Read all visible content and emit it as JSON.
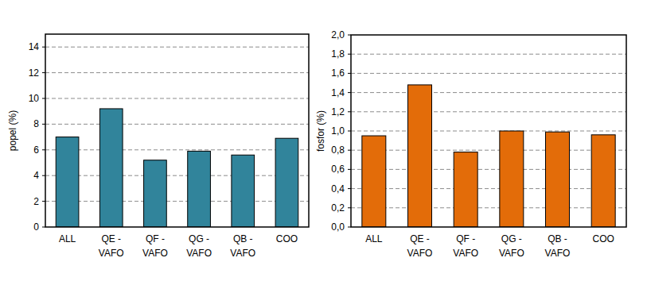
{
  "chart_data": [
    {
      "type": "bar",
      "y_label": "popel (%)",
      "categories": [
        "ALL",
        "QE - VAFO",
        "QF - VAFO",
        "QG - VAFO",
        "QB - VAFO",
        "COO"
      ],
      "values": [
        7.0,
        9.2,
        5.2,
        5.9,
        5.6,
        6.9
      ],
      "color": "#31849b",
      "ylim": [
        0,
        15
      ],
      "yticks": [
        0,
        2,
        4,
        6,
        8,
        10,
        12,
        14
      ],
      "grid": true
    },
    {
      "type": "bar",
      "y_label": "fosfor (%)",
      "categories": [
        "ALL",
        "QE - VAFO",
        "QF - VAFO",
        "QG - VAFO",
        "QB - VAFO",
        "COO"
      ],
      "values": [
        0.95,
        1.48,
        0.78,
        1.0,
        0.99,
        0.96
      ],
      "color": "#e36c09",
      "ylim": [
        0,
        2
      ],
      "yticks": [
        {
          "value": 0,
          "label": "0,0"
        },
        {
          "value": 0.2,
          "label": "0,2"
        },
        {
          "value": 0.4,
          "label": "0,4"
        },
        {
          "value": 0.6,
          "label": "0,6"
        },
        {
          "value": 0.8,
          "label": "0,8"
        },
        {
          "value": 1.0,
          "label": "1,0"
        },
        {
          "value": 1.2,
          "label": "1,2"
        },
        {
          "value": 1.4,
          "label": "1,4"
        },
        {
          "value": 1.6,
          "label": "1,6"
        },
        {
          "value": 1.8,
          "label": "1,8"
        },
        {
          "value": 2.0,
          "label": "2,0"
        }
      ],
      "grid": true
    }
  ]
}
